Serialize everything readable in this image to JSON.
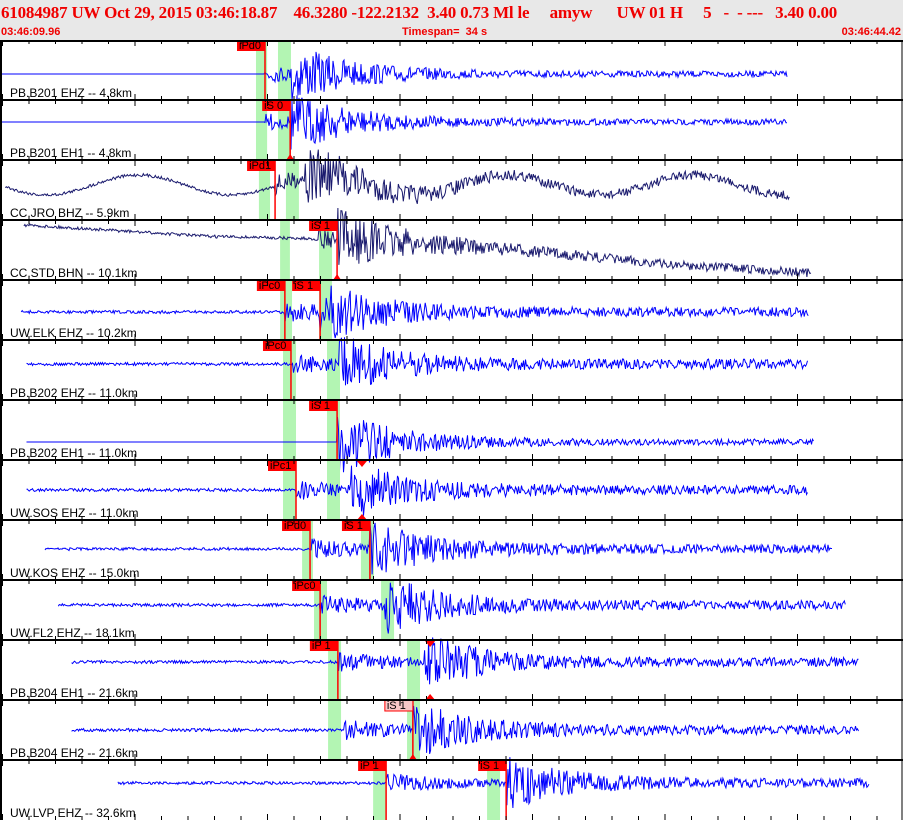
{
  "header": {
    "title": "61084987 UW Oct 29, 2015 03:46:18.87    46.3280 -122.2132  3.40 0.73 Ml le     amyw      UW 01 H     5   -  - ---   3.40 0.00",
    "start_time": "03:46:09.96",
    "timespan": "Timespan=  34 s",
    "end_time": "03:46:44.42"
  },
  "timeline": {
    "span_seconds": 34,
    "major_tick_seconds": 5,
    "minor_tick_seconds": 1
  },
  "colors": {
    "trace": "#0000ff",
    "trace_broadband": "#1a1a6e",
    "pick": "#ff0000",
    "pick_highlight": "#f8c8c8",
    "window": "#b3f5b3",
    "header_text": "#f00000"
  },
  "traces": [
    {
      "label": "PB.B201 EHZ -- 4.8km",
      "broadband": false,
      "start": 0.0,
      "end": 29.7,
      "onset": 10.0,
      "s": 11.0,
      "picks": [
        {
          "label": "iPd0",
          "t": 10.0
        }
      ],
      "windows": [
        [
          9.66,
          10.08
        ],
        [
          10.49,
          10.98
        ]
      ]
    },
    {
      "label": "PB.B201 EH1 -- 4.8km",
      "broadband": false,
      "start": 0.0,
      "end": 29.7,
      "onset": 10.0,
      "s": 10.95,
      "picks": [
        {
          "label": "iS 0",
          "t": 10.95,
          "tri": true
        }
      ],
      "windows": [
        [
          9.66,
          10.08
        ],
        [
          10.49,
          10.98
        ]
      ]
    },
    {
      "label": "CC.JRO BHZ -- 5.9km",
      "broadband": true,
      "start": 0.2,
      "end": 29.8,
      "onset": 10.38,
      "s": 11.5,
      "picks": [
        {
          "label": "iPd1",
          "t": 10.38
        }
      ],
      "windows": [
        [
          9.77,
          10.19
        ],
        [
          10.79,
          11.28
        ]
      ]
    },
    {
      "label": "CC.STD BHN -- 10.1km",
      "broadband": true,
      "start": 0.9,
      "end": 30.6,
      "onset": 12.0,
      "s": 12.72,
      "picks": [
        {
          "label": "iS 1",
          "t": 12.72,
          "tri": true
        }
      ],
      "windows": [
        [
          10.57,
          10.94
        ],
        [
          12.04,
          12.53
        ]
      ]
    },
    {
      "label": "UW.ELK EHZ -- 10.2km",
      "broadband": false,
      "start": 0.8,
      "end": 30.5,
      "onset": 10.75,
      "s": 12.08,
      "picks": [
        {
          "label": "iPc0",
          "t": 10.75
        },
        {
          "label": "iS 1",
          "t": 12.08
        }
      ],
      "windows": [
        [
          10.57,
          11.02
        ],
        [
          12.04,
          12.53
        ]
      ]
    },
    {
      "label": "PB.B202 EHZ -- 11.0km",
      "broadband": false,
      "start": 1.0,
      "end": 30.5,
      "onset": 10.98,
      "s": 12.8,
      "picks": [
        {
          "label": "iPc0",
          "t": 10.98
        }
      ],
      "windows": [
        [
          10.68,
          11.17
        ],
        [
          12.34,
          12.83
        ]
      ]
    },
    {
      "label": "PB.B202 EH1 -- 11.0km",
      "broadband": false,
      "start": 1.0,
      "end": 30.7,
      "onset": 12.72,
      "s": 12.72,
      "picks": [
        {
          "label": "iS 1",
          "t": 12.72
        }
      ],
      "windows": [
        [
          10.68,
          11.17
        ],
        [
          12.34,
          12.83
        ]
      ]
    },
    {
      "label": "UW.SOS EHZ -- 11.0km",
      "broadband": false,
      "start": 1.0,
      "end": 30.5,
      "onset": 11.17,
      "s": 13.2,
      "picks": [
        {
          "label": "iPc1",
          "t": 11.17
        }
      ],
      "windows": [
        [
          10.68,
          11.17
        ],
        [
          12.34,
          12.83
        ]
      ],
      "marker": 13.66
    },
    {
      "label": "UW.KOS EHZ -- 15.0km",
      "broadband": false,
      "start": 1.7,
      "end": 31.4,
      "onset": 11.7,
      "s": 13.96,
      "picks": [
        {
          "label": "iPd0",
          "t": 11.7
        },
        {
          "label": "iS 1",
          "t": 13.96
        }
      ],
      "windows": [
        [
          11.4,
          11.81
        ],
        [
          13.62,
          14.11
        ]
      ]
    },
    {
      "label": "UW.FL2 EHZ -- 18.1km",
      "broadband": false,
      "start": 2.2,
      "end": 31.9,
      "onset": 12.08,
      "s": 14.5,
      "picks": [
        {
          "label": "iPc0",
          "t": 12.08
        }
      ],
      "windows": [
        [
          11.85,
          12.34
        ],
        [
          14.38,
          14.87
        ]
      ]
    },
    {
      "label": "PB.B204 EH1 -- 21.6km",
      "broadband": false,
      "start": 2.7,
      "end": 32.4,
      "onset": 12.75,
      "s": 16.0,
      "picks": [
        {
          "label": "iP 1",
          "t": 12.75
        }
      ],
      "windows": [
        [
          12.38,
          12.87
        ],
        [
          15.36,
          15.85
        ]
      ],
      "marker": 16.23
    },
    {
      "label": "PB.B204 EH2 -- 21.6km",
      "broadband": false,
      "start": 2.7,
      "end": 32.4,
      "onset": 13.0,
      "s": 15.58,
      "picks": [
        {
          "label": "iS 1",
          "t": 15.58,
          "highlight": true,
          "tri": true
        }
      ],
      "windows": [
        [
          12.38,
          12.87
        ],
        [
          15.36,
          15.85
        ]
      ]
    },
    {
      "label": "UW.LVP EHZ -- 32.6km",
      "broadband": false,
      "start": 4.45,
      "end": 32.8,
      "onset": 14.57,
      "s": 19.1,
      "picks": [
        {
          "label": "iP 1",
          "t": 14.57
        },
        {
          "label": "iS 1",
          "t": 19.1
        }
      ],
      "windows": [
        [
          14.08,
          14.57
        ],
        [
          18.38,
          18.87
        ]
      ]
    }
  ]
}
